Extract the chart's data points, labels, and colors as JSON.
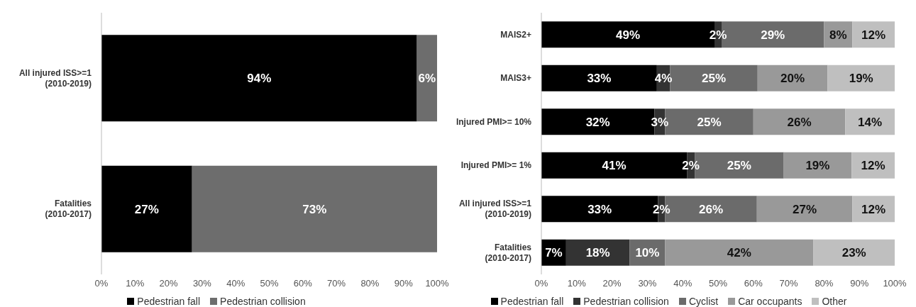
{
  "chart_data": [
    {
      "type": "bar",
      "orientation": "horizontal",
      "stacked": true,
      "categories": [
        "All injured ISS>=1\n(2010-2019)",
        "Fatalities\n(2010-2017)"
      ],
      "series": [
        {
          "name": "Pedestrian fall",
          "color": "#000000",
          "values": [
            94,
            27
          ]
        },
        {
          "name": "Pedestrian collision",
          "color": "#6d6d6d",
          "values": [
            6,
            73
          ]
        }
      ],
      "xlim": [
        0,
        100
      ],
      "xticks": [
        {
          "value": 0,
          "label": "0%"
        },
        {
          "value": 10,
          "label": "10%"
        },
        {
          "value": 20,
          "label": "20%"
        },
        {
          "value": 30,
          "label": "30%"
        },
        {
          "value": 40,
          "label": "40%"
        },
        {
          "value": 50,
          "label": "50%"
        },
        {
          "value": 60,
          "label": "60%"
        },
        {
          "value": 70,
          "label": "70%"
        },
        {
          "value": 80,
          "label": "80%"
        },
        {
          "value": 90,
          "label": "90%"
        },
        {
          "value": 100,
          "label": "100%"
        }
      ],
      "value_labels": [
        [
          "94%",
          "27%"
        ],
        [
          "6%",
          "73%"
        ]
      ],
      "grid": false,
      "legend": "bottom"
    },
    {
      "type": "bar",
      "orientation": "horizontal",
      "stacked": true,
      "categories": [
        "MAIS2+",
        "MAIS3+",
        "Injured PMI>= 10%",
        "Injured PMI>= 1%",
        "All injured ISS>=1\n(2010-2019)",
        "Fatalities\n(2010-2017)"
      ],
      "series": [
        {
          "name": "Pedestrian fall",
          "color": "#000000",
          "values": [
            49,
            32.7,
            32,
            41.2,
            33,
            7
          ]
        },
        {
          "name": "Pedestrian collision",
          "color": "#333333",
          "values": [
            2,
            3.7,
            3,
            2.2,
            2,
            18
          ]
        },
        {
          "name": "Cyclist",
          "color": "#6b6b6b",
          "values": [
            29,
            24.8,
            25,
            25.2,
            26,
            10
          ]
        },
        {
          "name": "Car occupants",
          "color": "#999999",
          "values": [
            8,
            19.8,
            26,
            19.2,
            27,
            42
          ]
        },
        {
          "name": "Other",
          "color": "#bfbfbf",
          "values": [
            12,
            19,
            14,
            12.2,
            12,
            23
          ]
        }
      ],
      "xlim": [
        0,
        100
      ],
      "xticks": [
        {
          "value": 0,
          "label": "0%"
        },
        {
          "value": 10,
          "label": "10%"
        },
        {
          "value": 20,
          "label": "20%"
        },
        {
          "value": 30,
          "label": "30%"
        },
        {
          "value": 40,
          "label": "40%"
        },
        {
          "value": 50,
          "label": "50%"
        },
        {
          "value": 60,
          "label": "60%"
        },
        {
          "value": 70,
          "label": "70%"
        },
        {
          "value": 80,
          "label": "80%"
        },
        {
          "value": 90,
          "label": "90%"
        },
        {
          "value": 100,
          "label": "100%"
        }
      ],
      "value_labels": [
        [
          "49%",
          "33%",
          "32%",
          "41%",
          "33%",
          "7%"
        ],
        [
          "2%",
          "4%",
          "3%",
          "2%",
          "2%",
          "18%"
        ],
        [
          "29%",
          "25%",
          "25%",
          "25%",
          "26%",
          "10%"
        ],
        [
          "8%",
          "20%",
          "26%",
          "19%",
          "27%",
          "42%"
        ],
        [
          "12%",
          "19%",
          "14%",
          "12%",
          "12%",
          "23%"
        ]
      ],
      "grid": false,
      "legend": "bottom"
    }
  ]
}
